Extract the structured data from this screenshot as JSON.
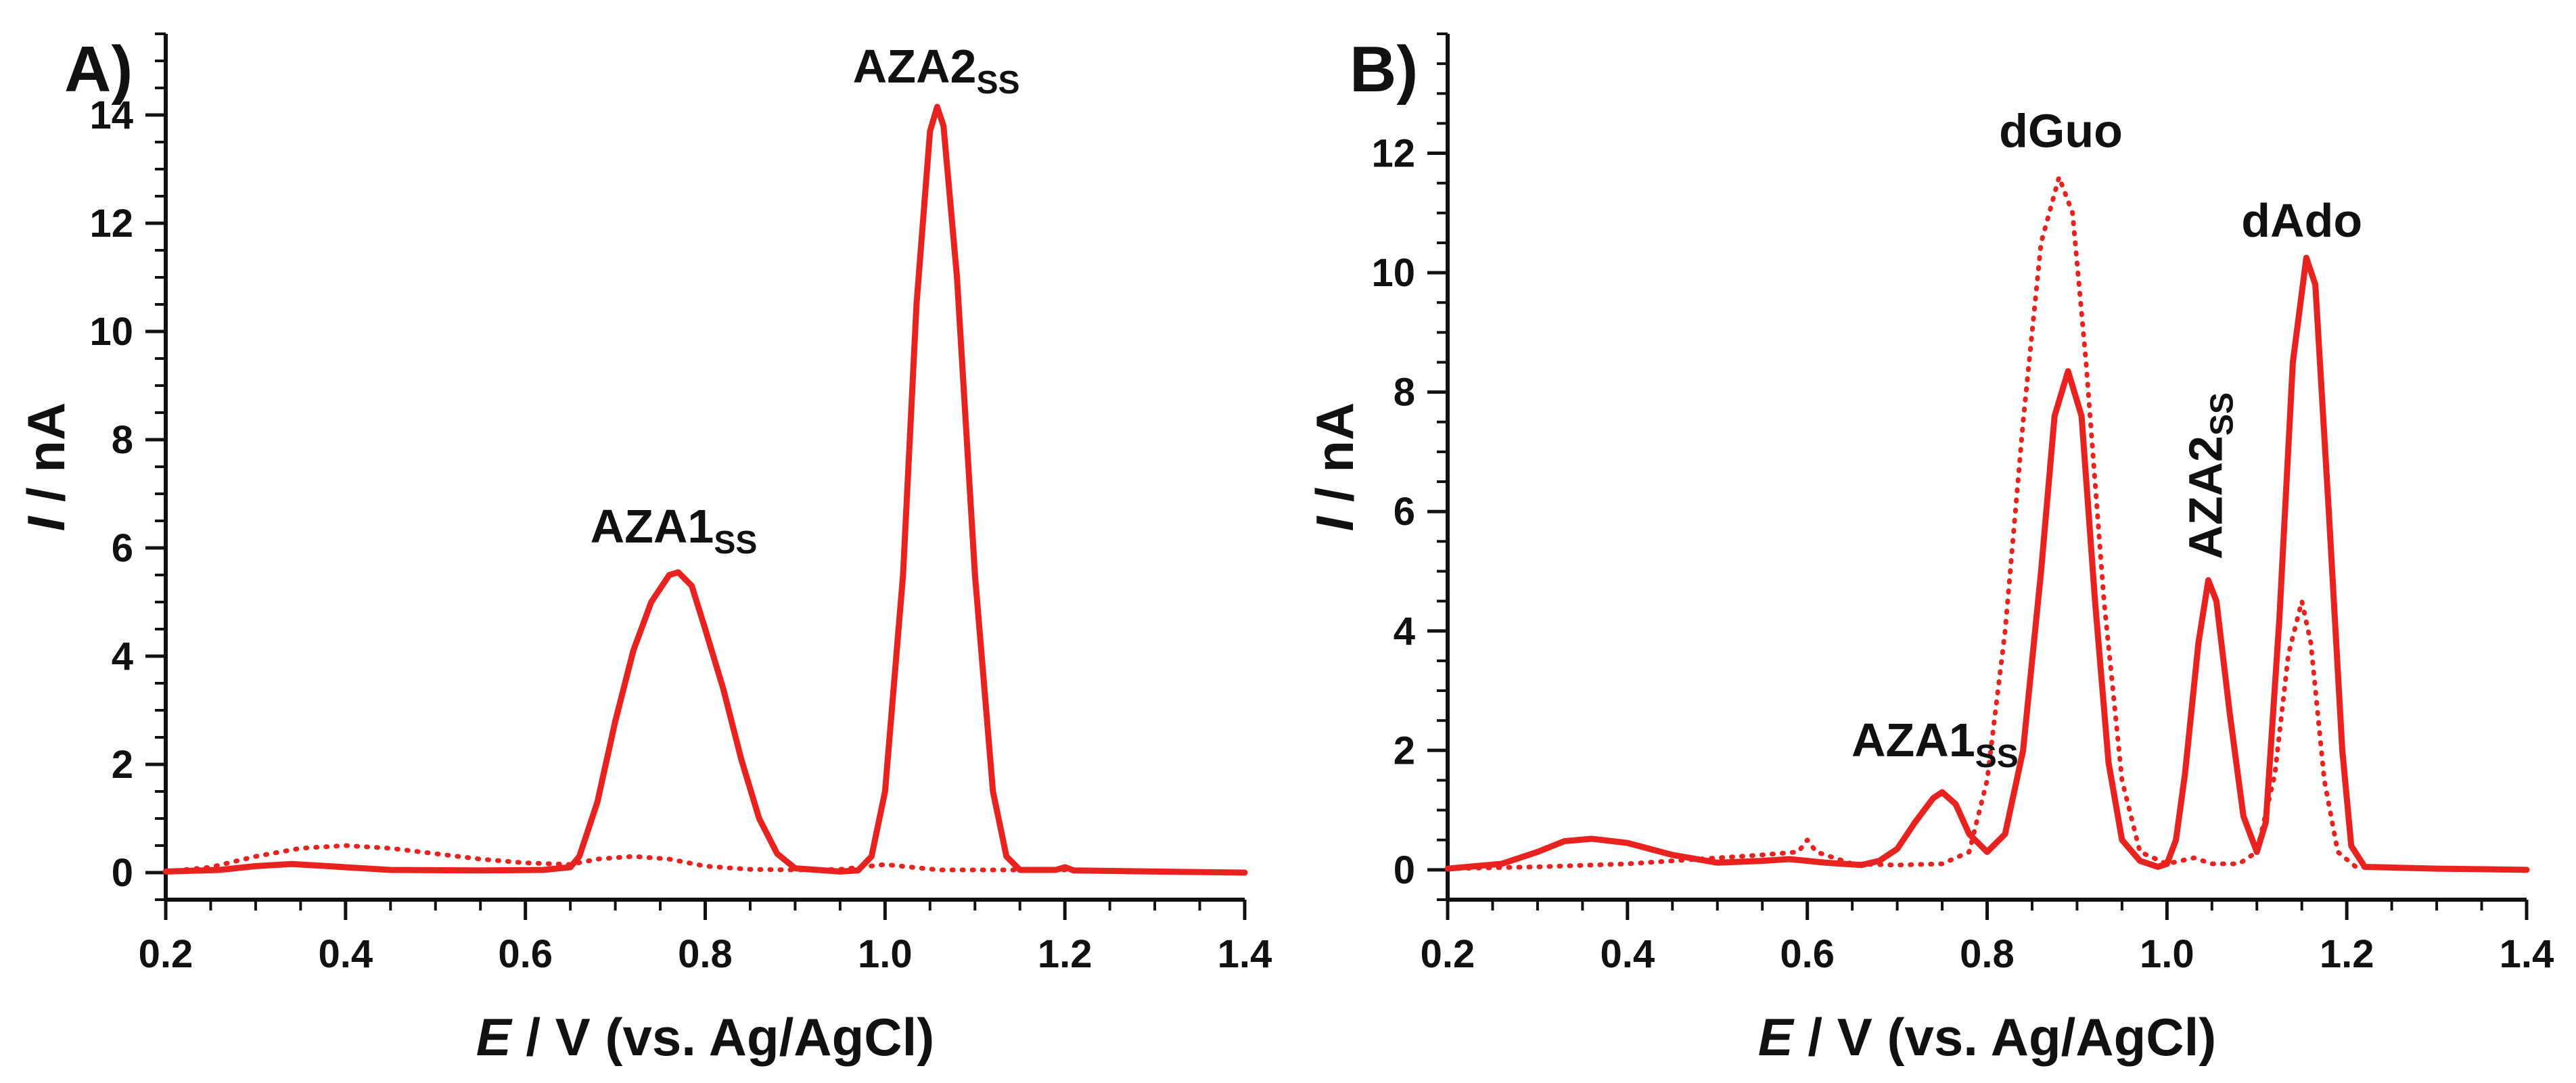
{
  "chart_data": [
    {
      "type": "line",
      "panel_label": "A)",
      "xlabel": {
        "italic": "E",
        "rest": " / V (vs. Ag/AgCl)"
      },
      "ylabel": {
        "italic": "I",
        "rest": " / nA"
      },
      "xlim": [
        0.2,
        1.4
      ],
      "ylim": [
        -0.5,
        15.5
      ],
      "xticks": [
        0.2,
        0.4,
        0.6,
        0.8,
        1.0,
        1.2,
        1.4
      ],
      "xtick_labels": [
        "0.2",
        "0.4",
        "0.6",
        "0.8",
        "1.0",
        "1.2",
        "1.4"
      ],
      "yticks": [
        0,
        2,
        4,
        6,
        8,
        10,
        12,
        14
      ],
      "ytick_labels": [
        "0",
        "2",
        "4",
        "6",
        "8",
        "10",
        "12",
        "14"
      ],
      "x_minor_step": 0.05,
      "y_minor_step": 0.5,
      "annotations": [
        {
          "id": "aza1",
          "text": "AZA1",
          "sub": "SS",
          "x": 0.765,
          "y": 6.1,
          "orientation": "horizontal"
        },
        {
          "id": "aza2",
          "text": "AZA2",
          "sub": "SS",
          "x": 1.057,
          "y": 14.6,
          "orientation": "horizontal"
        }
      ],
      "series": [
        {
          "name": "solid",
          "style": "solid",
          "color": "#e8231f",
          "points": [
            [
              0.2,
              0.02
            ],
            [
              0.26,
              0.05
            ],
            [
              0.3,
              0.12
            ],
            [
              0.34,
              0.16
            ],
            [
              0.38,
              0.12
            ],
            [
              0.45,
              0.05
            ],
            [
              0.55,
              0.04
            ],
            [
              0.62,
              0.05
            ],
            [
              0.65,
              0.1
            ],
            [
              0.66,
              0.3
            ],
            [
              0.68,
              1.3
            ],
            [
              0.7,
              2.8
            ],
            [
              0.72,
              4.1
            ],
            [
              0.74,
              5.0
            ],
            [
              0.76,
              5.5
            ],
            [
              0.77,
              5.55
            ],
            [
              0.785,
              5.3
            ],
            [
              0.8,
              4.5
            ],
            [
              0.82,
              3.4
            ],
            [
              0.84,
              2.1
            ],
            [
              0.86,
              1.0
            ],
            [
              0.88,
              0.35
            ],
            [
              0.9,
              0.08
            ],
            [
              0.95,
              0.02
            ],
            [
              0.97,
              0.04
            ],
            [
              0.985,
              0.3
            ],
            [
              1.0,
              1.5
            ],
            [
              1.02,
              5.5
            ],
            [
              1.035,
              10.5
            ],
            [
              1.05,
              13.7
            ],
            [
              1.058,
              14.15
            ],
            [
              1.065,
              13.8
            ],
            [
              1.08,
              11.0
            ],
            [
              1.1,
              5.5
            ],
            [
              1.12,
              1.5
            ],
            [
              1.135,
              0.3
            ],
            [
              1.15,
              0.05
            ],
            [
              1.19,
              0.05
            ],
            [
              1.2,
              0.1
            ],
            [
              1.21,
              0.04
            ],
            [
              1.3,
              0.02
            ],
            [
              1.4,
              0.0
            ]
          ]
        },
        {
          "name": "dotted",
          "style": "dotted",
          "color": "#e8231f",
          "points": [
            [
              0.2,
              0.02
            ],
            [
              0.25,
              0.1
            ],
            [
              0.3,
              0.3
            ],
            [
              0.35,
              0.45
            ],
            [
              0.4,
              0.5
            ],
            [
              0.45,
              0.45
            ],
            [
              0.5,
              0.35
            ],
            [
              0.55,
              0.25
            ],
            [
              0.6,
              0.18
            ],
            [
              0.65,
              0.15
            ],
            [
              0.68,
              0.25
            ],
            [
              0.72,
              0.3
            ],
            [
              0.76,
              0.25
            ],
            [
              0.8,
              0.12
            ],
            [
              0.85,
              0.06
            ],
            [
              0.9,
              0.05
            ],
            [
              0.95,
              0.06
            ],
            [
              1.0,
              0.15
            ],
            [
              1.03,
              0.1
            ],
            [
              1.06,
              0.05
            ],
            [
              1.1,
              0.05
            ],
            [
              1.2,
              0.05
            ],
            [
              1.3,
              0.02
            ],
            [
              1.4,
              0.0
            ]
          ]
        }
      ]
    },
    {
      "type": "line",
      "panel_label": "B)",
      "xlabel": {
        "italic": "E",
        "rest": " / V (vs. Ag/AgCl)"
      },
      "ylabel": {
        "italic": "I",
        "rest": " / nA"
      },
      "xlim": [
        0.2,
        1.4
      ],
      "ylim": [
        -0.5,
        14.0
      ],
      "xticks": [
        0.2,
        0.4,
        0.6,
        0.8,
        1.0,
        1.2,
        1.4
      ],
      "xtick_labels": [
        "0.2",
        "0.4",
        "0.6",
        "0.8",
        "1.0",
        "1.2",
        "1.4"
      ],
      "yticks": [
        0,
        2,
        4,
        6,
        8,
        10,
        12
      ],
      "ytick_labels": [
        "0",
        "2",
        "4",
        "6",
        "8",
        "10",
        "12"
      ],
      "x_minor_step": 0.05,
      "y_minor_step": 0.5,
      "annotations": [
        {
          "id": "aza1",
          "text": "AZA1",
          "sub": "SS",
          "x": 0.742,
          "y": 1.9,
          "orientation": "horizontal"
        },
        {
          "id": "dguo",
          "text": "dGuo",
          "sub": "",
          "x": 0.882,
          "y": 12.1,
          "orientation": "horizontal"
        },
        {
          "id": "aza2",
          "text": "AZA2",
          "sub": "SS",
          "x": 1.046,
          "y": 5.2,
          "orientation": "vertical"
        },
        {
          "id": "dado",
          "text": "dAdo",
          "sub": "",
          "x": 1.15,
          "y": 10.6,
          "orientation": "horizontal"
        }
      ],
      "series": [
        {
          "name": "solid",
          "style": "solid",
          "color": "#e8231f",
          "points": [
            [
              0.2,
              0.02
            ],
            [
              0.26,
              0.1
            ],
            [
              0.3,
              0.3
            ],
            [
              0.33,
              0.48
            ],
            [
              0.36,
              0.52
            ],
            [
              0.4,
              0.45
            ],
            [
              0.45,
              0.25
            ],
            [
              0.5,
              0.12
            ],
            [
              0.55,
              0.15
            ],
            [
              0.58,
              0.18
            ],
            [
              0.62,
              0.12
            ],
            [
              0.66,
              0.08
            ],
            [
              0.68,
              0.15
            ],
            [
              0.7,
              0.35
            ],
            [
              0.72,
              0.8
            ],
            [
              0.74,
              1.2
            ],
            [
              0.75,
              1.3
            ],
            [
              0.765,
              1.1
            ],
            [
              0.78,
              0.6
            ],
            [
              0.8,
              0.3
            ],
            [
              0.82,
              0.6
            ],
            [
              0.84,
              2.0
            ],
            [
              0.86,
              5.0
            ],
            [
              0.875,
              7.6
            ],
            [
              0.89,
              8.35
            ],
            [
              0.905,
              7.6
            ],
            [
              0.92,
              4.5
            ],
            [
              0.935,
              1.8
            ],
            [
              0.95,
              0.5
            ],
            [
              0.97,
              0.15
            ],
            [
              0.99,
              0.05
            ],
            [
              1.0,
              0.1
            ],
            [
              1.01,
              0.5
            ],
            [
              1.02,
              1.6
            ],
            [
              1.035,
              3.8
            ],
            [
              1.046,
              4.85
            ],
            [
              1.055,
              4.5
            ],
            [
              1.07,
              2.6
            ],
            [
              1.085,
              0.9
            ],
            [
              1.1,
              0.3
            ],
            [
              1.11,
              0.8
            ],
            [
              1.125,
              4.2
            ],
            [
              1.14,
              8.5
            ],
            [
              1.155,
              10.25
            ],
            [
              1.165,
              9.8
            ],
            [
              1.18,
              6.0
            ],
            [
              1.195,
              2.0
            ],
            [
              1.205,
              0.4
            ],
            [
              1.22,
              0.05
            ],
            [
              1.3,
              0.02
            ],
            [
              1.4,
              0.0
            ]
          ]
        },
        {
          "name": "dotted",
          "style": "dotted",
          "color": "#e8231f",
          "points": [
            [
              0.2,
              0.02
            ],
            [
              0.3,
              0.05
            ],
            [
              0.4,
              0.1
            ],
            [
              0.5,
              0.2
            ],
            [
              0.55,
              0.25
            ],
            [
              0.59,
              0.3
            ],
            [
              0.6,
              0.5
            ],
            [
              0.61,
              0.3
            ],
            [
              0.65,
              0.1
            ],
            [
              0.7,
              0.08
            ],
            [
              0.75,
              0.1
            ],
            [
              0.78,
              0.3
            ],
            [
              0.8,
              1.5
            ],
            [
              0.82,
              4.0
            ],
            [
              0.84,
              7.5
            ],
            [
              0.86,
              10.5
            ],
            [
              0.88,
              11.6
            ],
            [
              0.895,
              11.0
            ],
            [
              0.91,
              8.5
            ],
            [
              0.93,
              4.5
            ],
            [
              0.95,
              1.5
            ],
            [
              0.97,
              0.3
            ],
            [
              1.0,
              0.1
            ],
            [
              1.03,
              0.2
            ],
            [
              1.05,
              0.1
            ],
            [
              1.08,
              0.1
            ],
            [
              1.1,
              0.3
            ],
            [
              1.12,
              1.6
            ],
            [
              1.135,
              3.6
            ],
            [
              1.15,
              4.5
            ],
            [
              1.16,
              3.8
            ],
            [
              1.175,
              1.5
            ],
            [
              1.19,
              0.3
            ],
            [
              1.21,
              0.05
            ],
            [
              1.3,
              0.02
            ],
            [
              1.4,
              0.0
            ]
          ]
        }
      ]
    }
  ]
}
